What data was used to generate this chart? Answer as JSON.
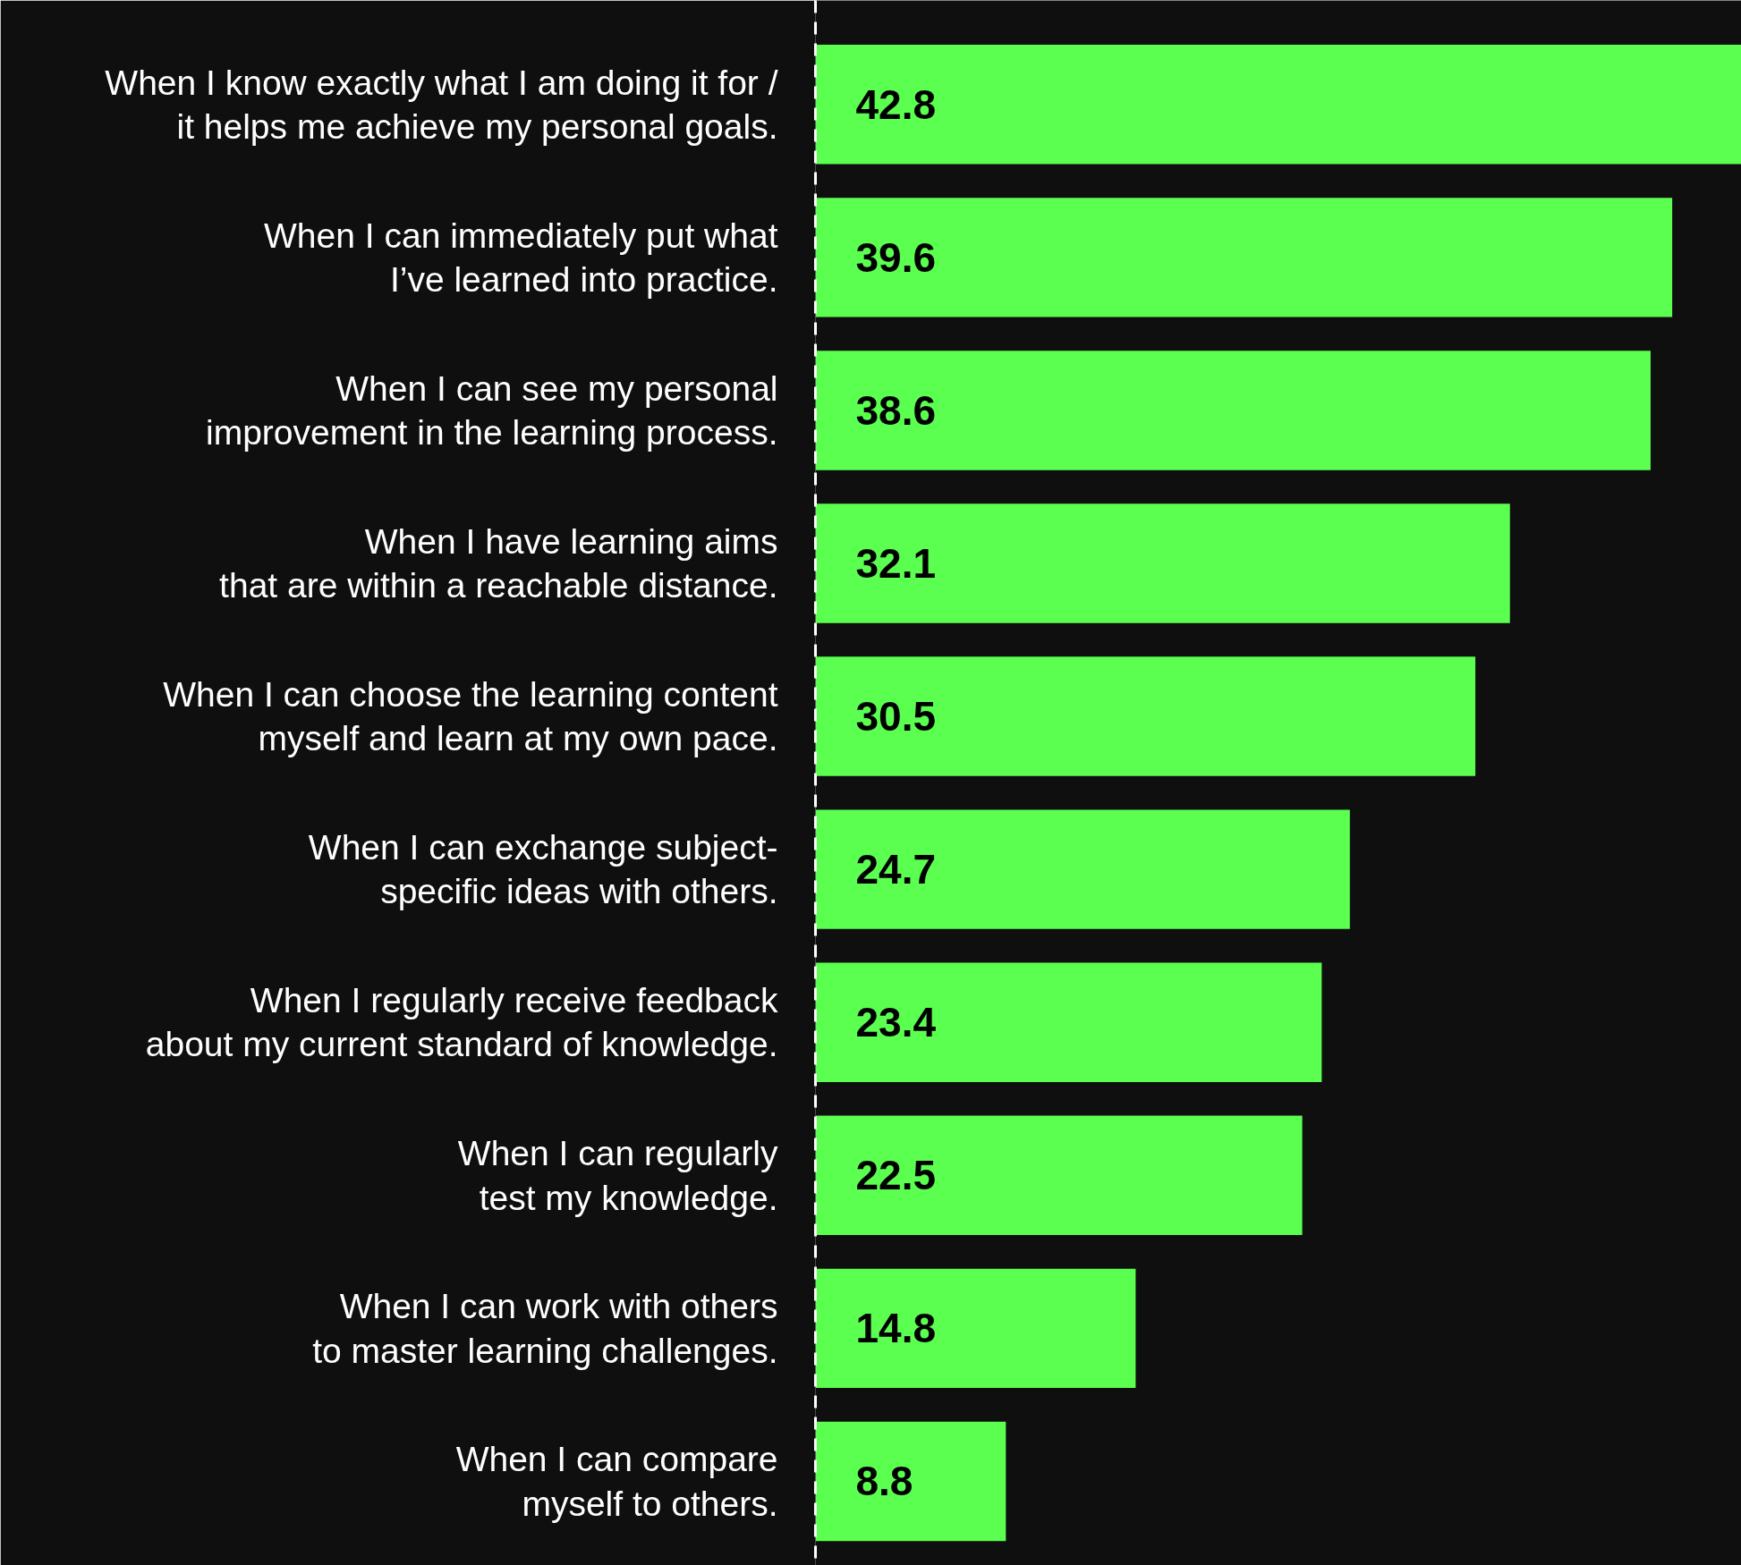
{
  "chart_data": {
    "type": "bar",
    "orientation": "horizontal",
    "data_labels": true,
    "grid": false,
    "tick_labels": "y",
    "categories": [
      "When I know exactly what I am doing it for /\nit helps me achieve my personal goals.",
      "When I can immediately put what\nI’ve learned into practice.",
      "When I can see my personal\nimprovement in the learning process.",
      "When I have learning aims\nthat are within a reachable distance.",
      "When I can choose the learning content\nmyself and learn at my own pace.",
      "When I can exchange subject-\nspecific ideas with others.",
      "When I regularly receive feedback\nabout my current standard of knowledge.",
      "When I can regularly\ntest my knowledge.",
      "When I can work with others\nto master learning challenges.",
      "When I can compare\nmyself to others."
    ],
    "values": [
      42.8,
      39.6,
      38.6,
      32.1,
      30.5,
      24.7,
      23.4,
      22.5,
      14.8,
      8.8
    ],
    "color": "#5aff50"
  }
}
